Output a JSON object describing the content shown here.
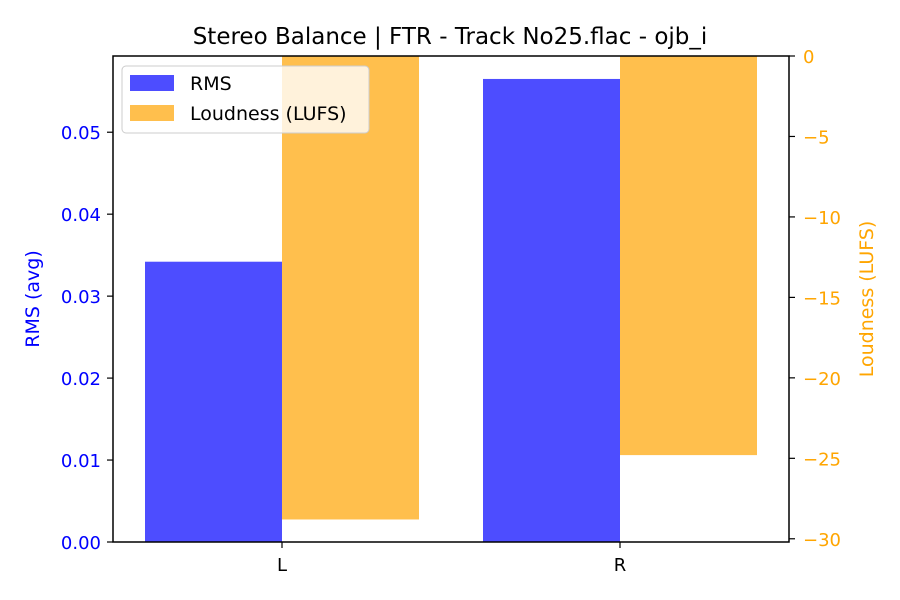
{
  "chart_data": {
    "type": "bar",
    "title": "Stereo Balance | FTR - Track No25.flac - ojb_i",
    "categories": [
      "L",
      "R"
    ],
    "series": [
      {
        "name": "RMS",
        "axis": "left",
        "color": "#4d4dff",
        "values": [
          0.0342,
          0.0565
        ]
      },
      {
        "name": "Loudness (LUFS)",
        "axis": "right",
        "color": "#ffbf4d",
        "values": [
          -28.8,
          -24.8
        ]
      }
    ],
    "y_left": {
      "label": "RMS (avg)",
      "color": "#0000ff",
      "range": [
        0,
        0.0593
      ],
      "ticks": [
        0.0,
        0.01,
        0.02,
        0.03,
        0.04,
        0.05
      ],
      "tick_labels": [
        "0.00",
        "0.01",
        "0.02",
        "0.03",
        "0.04",
        "0.05"
      ]
    },
    "y_right": {
      "label": "Loudness (LUFS)",
      "color": "#ffa500",
      "range": [
        -30.2,
        0
      ],
      "ticks": [
        0,
        -5,
        -10,
        -15,
        -20,
        -25,
        -30
      ],
      "tick_labels": [
        "0",
        "−5",
        "−10",
        "−15",
        "−20",
        "−25",
        "−30"
      ]
    },
    "legend": {
      "position": "top-left",
      "entries": [
        "RMS",
        "Loudness (LUFS)"
      ]
    },
    "grid": false
  }
}
